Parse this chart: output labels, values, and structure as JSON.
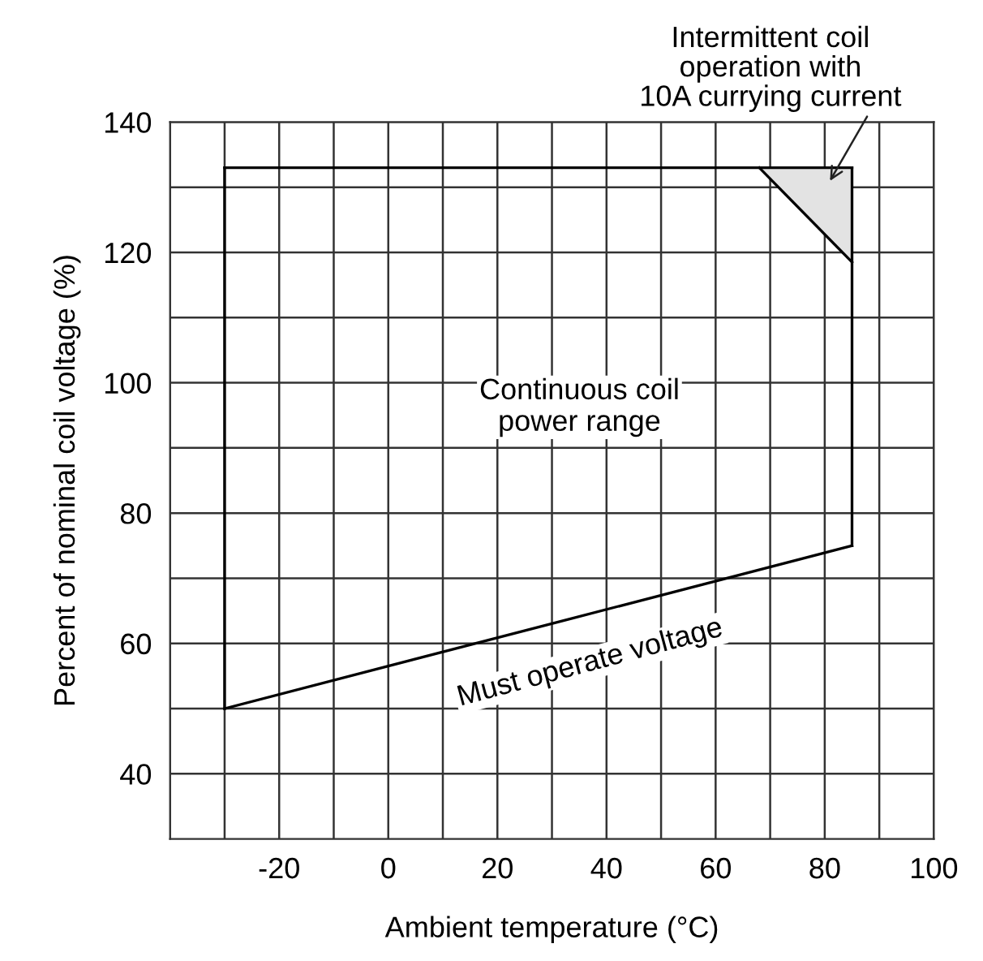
{
  "chart_data": {
    "type": "line",
    "xlabel": "Ambient temperature (°C)",
    "ylabel": "Percent of nominal coil voltage (%)",
    "xlim": [
      -40,
      100
    ],
    "ylim": [
      30,
      140
    ],
    "xticks": [
      {
        "value": -40,
        "label": null
      },
      {
        "value": -30,
        "label": null
      },
      -20,
      {
        "value": -10,
        "label": null
      },
      0,
      {
        "value": 10,
        "label": null
      },
      20,
      {
        "value": 30,
        "label": null
      },
      40,
      {
        "value": 50,
        "label": null
      },
      60,
      {
        "value": 70,
        "label": null
      },
      80,
      {
        "value": 90,
        "label": null
      },
      100
    ],
    "yticks": [
      40,
      {
        "value": 50,
        "label": null
      },
      60,
      {
        "value": 70,
        "label": null
      },
      80,
      {
        "value": 90,
        "label": null
      },
      100,
      {
        "value": 110,
        "label": null
      },
      120,
      {
        "value": 130,
        "label": null
      },
      140
    ],
    "grid": true,
    "marker": "none",
    "line_style": "solid",
    "series": [
      {
        "color": "#000000",
        "x": [
          -30,
          85
        ],
        "values": [
          50,
          75
        ]
      },
      {
        "color": "#000000",
        "x": [
          -30,
          85
        ],
        "values": [
          133,
          133
        ]
      },
      {
        "color": "#000000",
        "x": [
          -30,
          -30
        ],
        "values": [
          50,
          133
        ]
      },
      {
        "color": "#000000",
        "x": [
          85,
          85
        ],
        "values": [
          75,
          133
        ]
      },
      {
        "color": "#000000",
        "x": [
          68,
          85
        ],
        "values": [
          133,
          118.5
        ],
        "lower": [
          133,
          118.5
        ],
        "upper": [
          133,
          133
        ]
      }
    ],
    "annotations": [
      "Intermittent coil\noperation with\n10A currying current",
      "Continuous coil\npower range",
      "Must operate voltage"
    ]
  }
}
